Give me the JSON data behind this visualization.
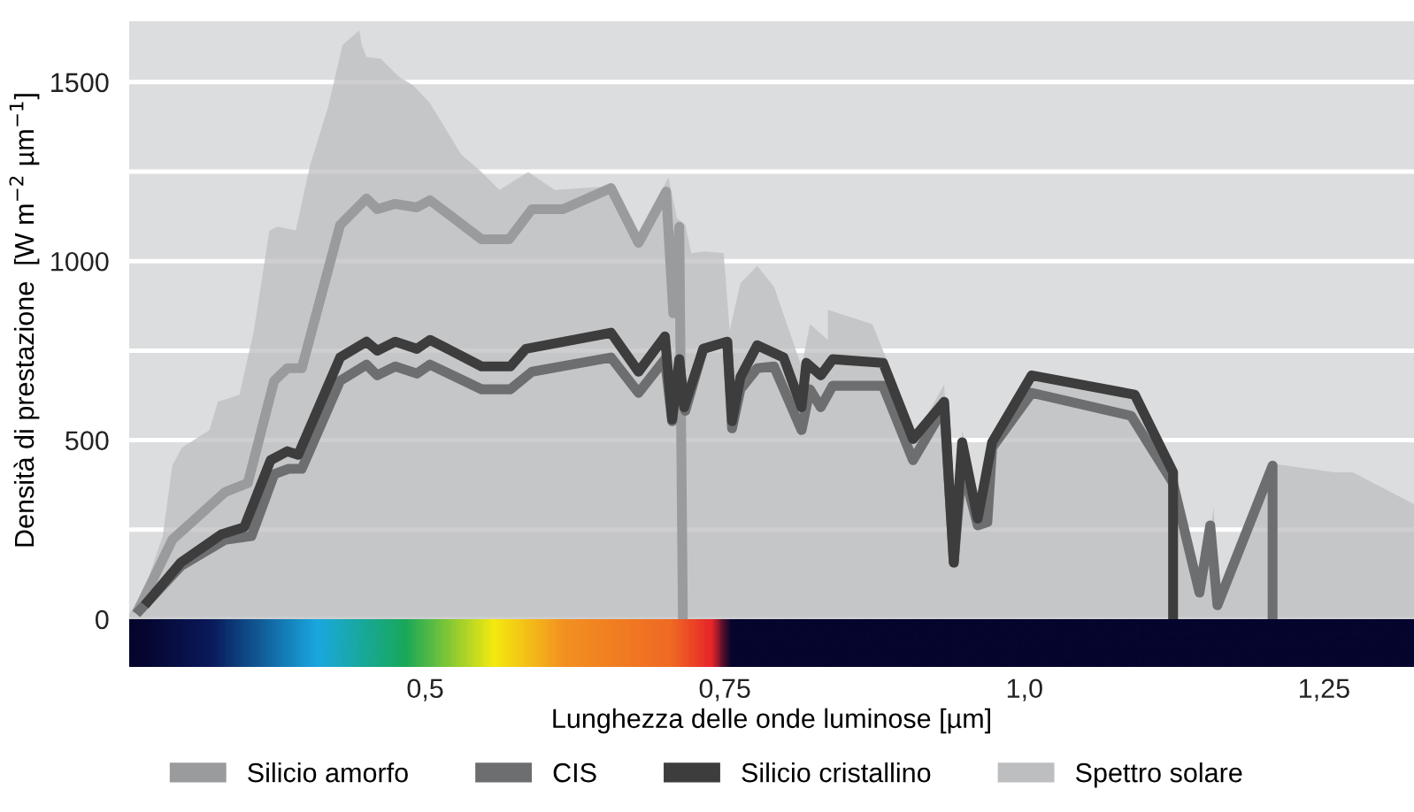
{
  "chart_data": {
    "type": "line",
    "xlabel": "Lunghezza delle onde luminose [µm]",
    "ylabel": "Densità di prestazione  [W m$^{−2}$ µm$^{−1}$]",
    "xlim": [
      0.253,
      1.325
    ],
    "xticks": [
      {
        "value": 0.5,
        "label": "0,5"
      },
      {
        "value": 0.75,
        "label": "0,75"
      },
      {
        "value": 1.0,
        "label": "1,0"
      },
      {
        "value": 1.25,
        "label": "1,25"
      }
    ],
    "ylim": [
      0,
      1670
    ],
    "yticks": [
      0,
      {
        "value": 250,
        "label": null
      },
      500,
      {
        "value": 750,
        "label": null
      },
      1000,
      {
        "value": 1250,
        "label": null
      },
      1500
    ],
    "grid": "y",
    "legend": "bottom",
    "series": [
      {
        "name": "Silicio amorfo",
        "color": "#9a9b9d",
        "x": [
          0.259,
          0.289,
          0.333,
          0.352,
          0.374,
          0.385,
          0.397,
          0.429,
          0.451,
          0.46,
          0.475,
          0.493,
          0.504,
          0.547,
          0.57,
          0.589,
          0.615,
          0.655,
          0.678,
          0.701,
          0.707,
          0.712,
          0.715
        ],
        "values": [
          15,
          222,
          355,
          380,
          666,
          701,
          701,
          1101,
          1175,
          1145,
          1160,
          1150,
          1170,
          1061,
          1061,
          1145,
          1145,
          1204,
          1051,
          1194,
          854,
          1096,
          0
        ]
      },
      {
        "name": "CIS",
        "color": "#6d6e70",
        "x": [
          0.259,
          0.296,
          0.333,
          0.355,
          0.374,
          0.386,
          0.397,
          0.429,
          0.451,
          0.46,
          0.475,
          0.493,
          0.504,
          0.547,
          0.571,
          0.589,
          0.655,
          0.678,
          0.7,
          0.706,
          0.712,
          0.717,
          0.732,
          0.752,
          0.756,
          0.763,
          0.777,
          0.791,
          0.814,
          0.821,
          0.83,
          0.84,
          0.882,
          0.907,
          0.933,
          0.941,
          0.948,
          0.961,
          0.969,
          0.973,
          1.006,
          1.089,
          1.124,
          1.146,
          1.155,
          1.161,
          1.207,
          1.207
        ],
        "values": [
          15,
          148,
          222,
          232,
          405,
          420,
          420,
          666,
          711,
          681,
          706,
          686,
          711,
          642,
          642,
          691,
          731,
          632,
          726,
          553,
          721,
          582,
          755,
          775,
          533,
          642,
          701,
          706,
          528,
          642,
          592,
          652,
          652,
          444,
          592,
          158,
          429,
          262,
          271,
          479,
          632,
          568,
          380,
          74,
          262,
          39,
          429,
          0
        ]
      },
      {
        "name": "Silicio cristallino",
        "color": "#3d3d3d",
        "x": [
          0.266,
          0.296,
          0.33,
          0.349,
          0.371,
          0.385,
          0.394,
          0.429,
          0.451,
          0.46,
          0.475,
          0.493,
          0.504,
          0.547,
          0.571,
          0.584,
          0.655,
          0.678,
          0.7,
          0.706,
          0.712,
          0.716,
          0.732,
          0.752,
          0.756,
          0.763,
          0.777,
          0.799,
          0.814,
          0.818,
          0.83,
          0.84,
          0.882,
          0.907,
          0.933,
          0.941,
          0.948,
          0.961,
          0.973,
          1.006,
          1.092,
          1.124,
          1.124
        ],
        "values": [
          39,
          158,
          237,
          257,
          444,
          469,
          459,
          731,
          775,
          750,
          775,
          755,
          780,
          706,
          706,
          755,
          800,
          691,
          790,
          558,
          726,
          592,
          755,
          775,
          553,
          676,
          765,
          731,
          592,
          716,
          681,
          726,
          716,
          503,
          607,
          158,
          494,
          281,
          494,
          681,
          627,
          410,
          0
        ]
      },
      {
        "name": "Spettro solare",
        "type": "area",
        "color": "#bdbec0",
        "x": [
          0.253,
          0.266,
          0.274,
          0.281,
          0.289,
          0.297,
          0.32,
          0.327,
          0.345,
          0.357,
          0.37,
          0.377,
          0.392,
          0.404,
          0.419,
          0.431,
          0.445,
          0.447,
          0.451,
          0.463,
          0.478,
          0.49,
          0.504,
          0.53,
          0.547,
          0.562,
          0.574,
          0.586,
          0.608,
          0.655,
          0.678,
          0.703,
          0.71,
          0.717,
          0.722,
          0.734,
          0.749,
          0.754,
          0.763,
          0.777,
          0.791,
          0.814,
          0.821,
          0.836,
          0.836,
          0.873,
          0.885,
          0.904,
          0.933,
          0.941,
          0.948,
          0.963,
          0.976,
          1.006,
          1.096,
          1.126,
          1.146,
          1.158,
          1.161,
          1.207,
          1.259,
          1.274,
          1.325
        ],
        "values": [
          15,
          84,
          163,
          232,
          429,
          479,
          528,
          607,
          627,
          805,
          1086,
          1096,
          1086,
          1269,
          1431,
          1604,
          1644,
          1604,
          1570,
          1565,
          1515,
          1491,
          1441,
          1298,
          1249,
          1199,
          1224,
          1249,
          1199,
          1209,
          1071,
          1234,
          1120,
          1101,
          1022,
          1027,
          1022,
          805,
          938,
          987,
          928,
          706,
          824,
          780,
          864,
          824,
          726,
          479,
          656,
          148,
          528,
          281,
          508,
          691,
          632,
          410,
          84,
          311,
          49,
          434,
          410,
          410,
          321
        ]
      }
    ]
  }
}
